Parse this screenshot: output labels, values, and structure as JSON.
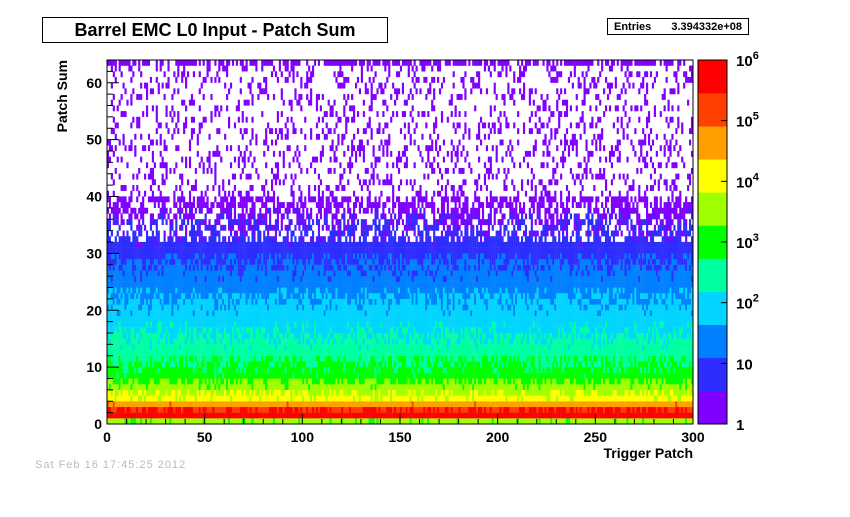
{
  "chart_data": {
    "type": "heatmap",
    "title": "Barrel EMC L0 Input - Patch Sum",
    "xlabel": "Trigger Patch",
    "ylabel": "Patch Sum",
    "xlim": [
      0,
      300
    ],
    "ylim": [
      0,
      64
    ],
    "x_ticks": [
      "0",
      "50",
      "100",
      "150",
      "200",
      "250",
      "300"
    ],
    "y_ticks": [
      "0",
      "10",
      "20",
      "30",
      "40",
      "50",
      "60"
    ],
    "z_scale": "log",
    "z_range": [
      1,
      1000000
    ],
    "colorbar_labels": [
      {
        "base": "1",
        "exp": ""
      },
      {
        "base": "10",
        "exp": ""
      },
      {
        "base": "10",
        "exp": "2"
      },
      {
        "base": "10",
        "exp": "3"
      },
      {
        "base": "10",
        "exp": "4"
      },
      {
        "base": "10",
        "exp": "5"
      },
      {
        "base": "10",
        "exp": "6"
      }
    ],
    "colors": [
      "#7f00ff",
      "#2d2dff",
      "#0080ff",
      "#00d4ff",
      "#00ffa0",
      "#00ff00",
      "#a0ff00",
      "#ffff00",
      "#ffa000",
      "#ff4000",
      "#ff0000"
    ],
    "grid": false,
    "legend": "none",
    "approx_profile": [
      {
        "patch_sum": 0,
        "counts": 3000
      },
      {
        "patch_sum": 1,
        "counts": 1000000
      },
      {
        "patch_sum": 2,
        "counts": 300000
      },
      {
        "patch_sum": 4,
        "counts": 10000
      },
      {
        "patch_sum": 8,
        "counts": 1000
      },
      {
        "patch_sum": 14,
        "counts": 200
      },
      {
        "patch_sum": 20,
        "counts": 60
      },
      {
        "patch_sum": 30,
        "counts": 8
      },
      {
        "patch_sum": 40,
        "counts": 1.5
      },
      {
        "patch_sum": 50,
        "counts": 1
      },
      {
        "patch_sum": 63,
        "counts": 1
      }
    ]
  },
  "stats": {
    "entries_label": "Entries",
    "entries_value": "3.394332e+08"
  },
  "footer": {
    "timestamp": "Sat Feb 16 17:45:25 2012"
  }
}
